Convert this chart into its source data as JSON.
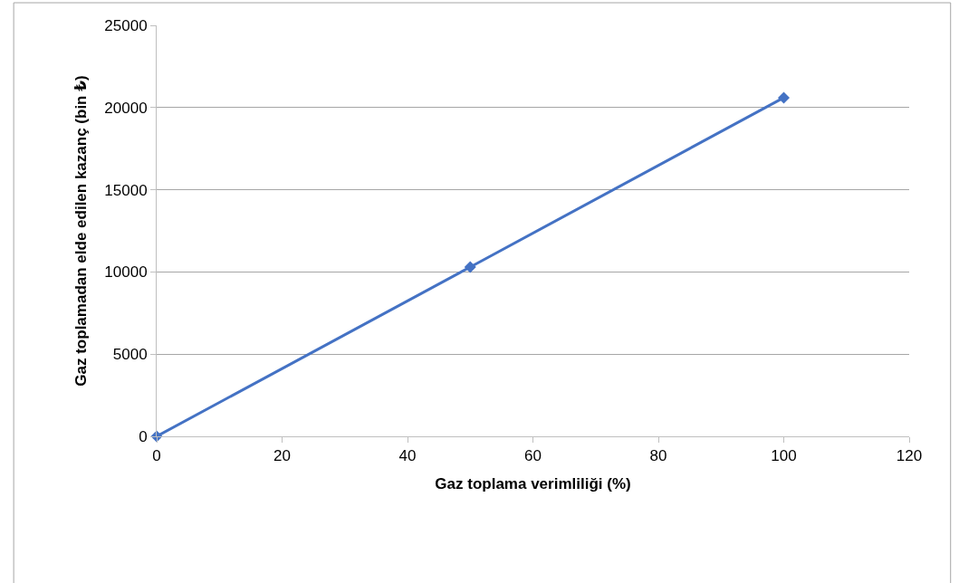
{
  "chart_data": {
    "type": "line",
    "xlabel": "Gaz toplama verimliliği (%)",
    "ylabel": "Gaz toplamadan elde edilen kazanç (bin ₺)",
    "x": [
      0,
      50,
      100
    ],
    "series": [
      {
        "color": "#4472c4",
        "values": [
          0,
          10300,
          20600
        ]
      }
    ],
    "xlim": [
      0,
      120
    ],
    "xticks": [
      0,
      20,
      40,
      60,
      80,
      100,
      120
    ],
    "ylim": [
      0,
      25000
    ],
    "yticks": [
      0,
      5000,
      10000,
      15000,
      20000,
      25000
    ],
    "grid": "y",
    "legend": false,
    "marker": "diamond",
    "line_style": "solid"
  }
}
